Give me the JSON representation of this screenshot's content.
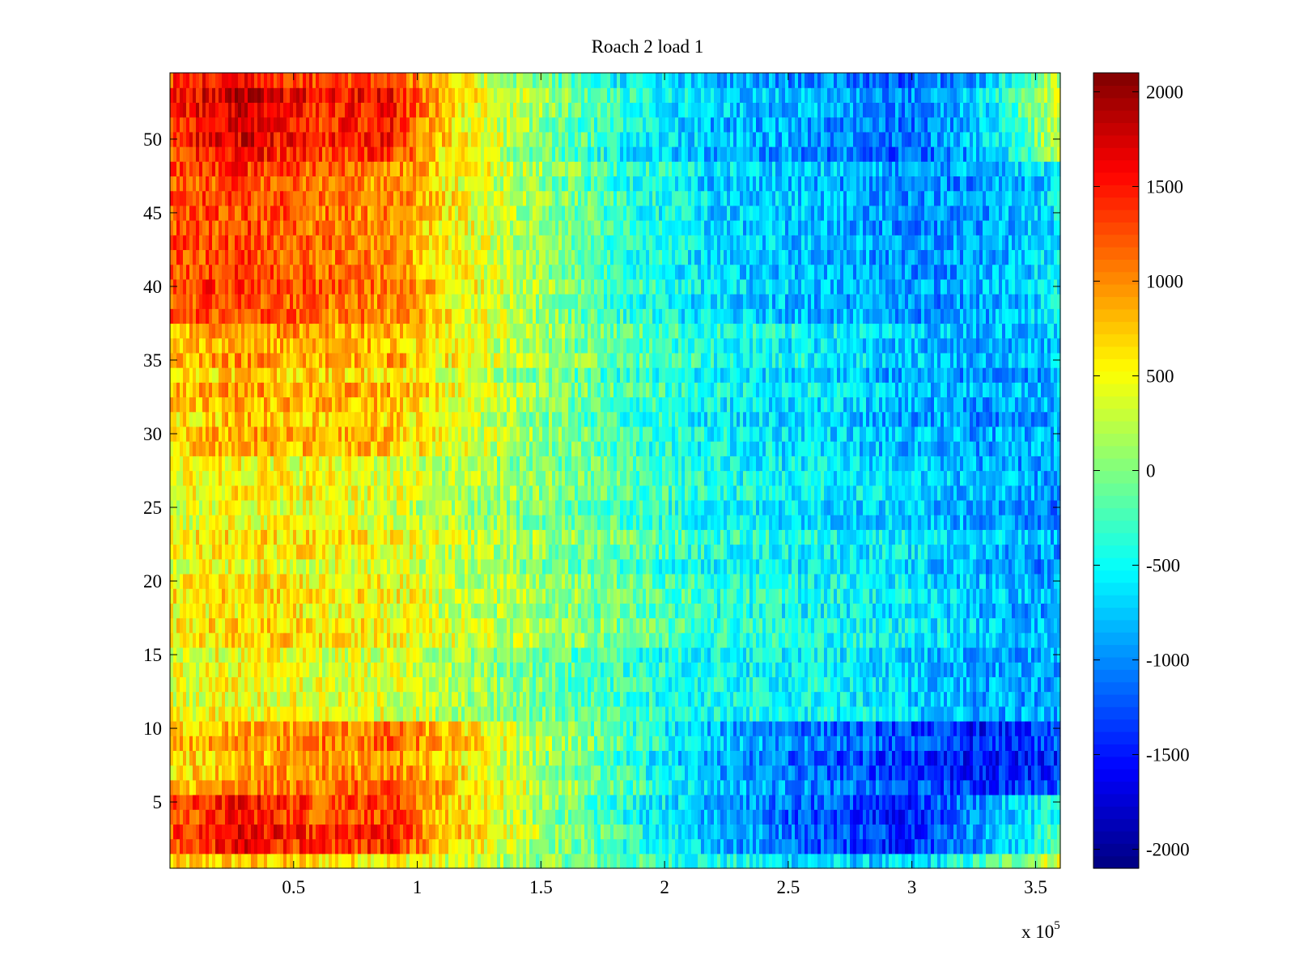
{
  "chart_data": {
    "type": "heatmap",
    "title": "Roach 2 load 1",
    "xlabel": "",
    "ylabel": "",
    "colormap": "jet",
    "x_range": [
      0,
      360000
    ],
    "y_range": [
      0.5,
      54.5
    ],
    "color_range": [
      -2100,
      2100
    ],
    "x_ticks": [
      50000,
      100000,
      150000,
      200000,
      250000,
      300000,
      350000
    ],
    "x_tick_labels": [
      "0.5",
      "1",
      "1.5",
      "2",
      "2.5",
      "3",
      "3.5"
    ],
    "x_exponent_label": "x 10",
    "x_exponent_power": "5",
    "y_ticks": [
      5,
      10,
      15,
      20,
      25,
      30,
      35,
      40,
      45,
      50
    ],
    "y_tick_labels": [
      "5",
      "10",
      "15",
      "20",
      "25",
      "30",
      "35",
      "40",
      "45",
      "50"
    ],
    "colorbar_ticks": [
      2000,
      1500,
      1000,
      500,
      0,
      -500,
      -1000,
      -1500,
      -2000
    ],
    "colorbar_tick_labels": [
      "2000",
      "1500",
      "1000",
      "500",
      "0",
      "-500",
      "-1000",
      "-1500",
      "-2000"
    ],
    "grid": false,
    "row_values_note": "approximate smooth field: value by x (in 1e5) for row groups",
    "x_profile_x": [
      0,
      0.3,
      0.6,
      0.9,
      1.1,
      1.4,
      1.8,
      2.2,
      2.6,
      3.0,
      3.3,
      3.6
    ],
    "row_profiles": [
      {
        "rows": [
          1,
          1
        ],
        "values": [
          600,
          700,
          600,
          550,
          350,
          100,
          -200,
          -500,
          -700,
          -800,
          -300,
          400
        ]
      },
      {
        "rows": [
          2,
          5
        ],
        "values": [
          1200,
          1600,
          1300,
          1400,
          800,
          300,
          -300,
          -800,
          -1200,
          -1400,
          -900,
          -300
        ]
      },
      {
        "rows": [
          6,
          10
        ],
        "values": [
          700,
          900,
          1000,
          1100,
          800,
          300,
          -200,
          -800,
          -1100,
          -1300,
          -1500,
          -1300
        ]
      },
      {
        "rows": [
          11,
          15
        ],
        "values": [
          500,
          600,
          500,
          450,
          300,
          100,
          -200,
          -400,
          -400,
          -600,
          -800,
          -800
        ]
      },
      {
        "rows": [
          16,
          28
        ],
        "values": [
          500,
          600,
          550,
          450,
          300,
          150,
          -100,
          -400,
          -500,
          -600,
          -800,
          -900
        ]
      },
      {
        "rows": [
          29,
          37
        ],
        "values": [
          700,
          900,
          800,
          800,
          500,
          200,
          -200,
          -500,
          -600,
          -800,
          -900,
          -800
        ]
      },
      {
        "rows": [
          38,
          48
        ],
        "values": [
          1200,
          1300,
          1100,
          1000,
          600,
          200,
          -300,
          -700,
          -800,
          -1000,
          -900,
          -600
        ]
      },
      {
        "rows": [
          49,
          54
        ],
        "values": [
          1400,
          1700,
          1400,
          1500,
          700,
          200,
          -400,
          -800,
          -900,
          -1100,
          -700,
          300
        ]
      }
    ]
  }
}
